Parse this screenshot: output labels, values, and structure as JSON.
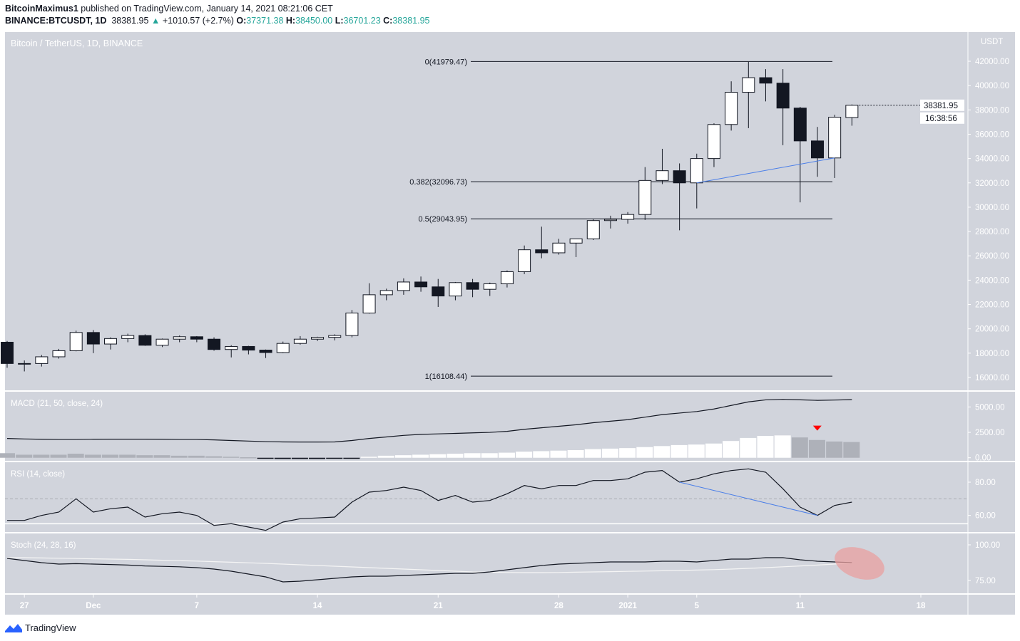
{
  "header": {
    "author": "BitcoinMaximus1",
    "published": "published on TradingView.com, January 14, 2021 08:21:06 CET",
    "symbol": "BINANCE:BTCUSDT, 1D",
    "price": "38381.95",
    "change": "+1010.57 (+2.7%)",
    "o_label": "O:",
    "o": "37371.38",
    "h_label": "H:",
    "h": "38450.00",
    "l_label": "L:",
    "l": "36701.23",
    "c_label": "C:",
    "c": "38381.95"
  },
  "colors": {
    "panel": "#d1d4dc",
    "up": "#ffffff",
    "down": "#131722",
    "accent": "#26a69a",
    "trend": "#4a7ee8",
    "marker": "#ff0000",
    "ellipse": "#e8a0a0"
  },
  "brand": "TradingView",
  "chart_data": {
    "type": "candlestick",
    "title": "Bitcoin / TetherUS, 1D, BINANCE",
    "currency": "USDT",
    "ylim": [
      15000,
      44000
    ],
    "yticks": [
      16000,
      18000,
      20000,
      22000,
      24000,
      26000,
      28000,
      30000,
      32000,
      34000,
      36000,
      38000,
      40000,
      42000
    ],
    "last_price_label": "38381.95",
    "countdown_label": "16:38:56",
    "x_tick_labels": [
      {
        "day": 1,
        "label": "27"
      },
      {
        "day": 5,
        "label": "Dec"
      },
      {
        "day": 11,
        "label": "7"
      },
      {
        "day": 18,
        "label": "14"
      },
      {
        "day": 25,
        "label": "21"
      },
      {
        "day": 32,
        "label": "28"
      },
      {
        "day": 36,
        "label": "2021"
      },
      {
        "day": 40,
        "label": "5"
      },
      {
        "day": 46,
        "label": "11"
      },
      {
        "day": 53,
        "label": "18"
      }
    ],
    "dates": [
      "2020-11-26",
      "2020-11-27",
      "2020-11-28",
      "2020-11-29",
      "2020-11-30",
      "2020-12-01",
      "2020-12-02",
      "2020-12-03",
      "2020-12-04",
      "2020-12-05",
      "2020-12-06",
      "2020-12-07",
      "2020-12-08",
      "2020-12-09",
      "2020-12-10",
      "2020-12-11",
      "2020-12-12",
      "2020-12-13",
      "2020-12-14",
      "2020-12-15",
      "2020-12-16",
      "2020-12-17",
      "2020-12-18",
      "2020-12-19",
      "2020-12-20",
      "2020-12-21",
      "2020-12-22",
      "2020-12-23",
      "2020-12-24",
      "2020-12-25",
      "2020-12-26",
      "2020-12-27",
      "2020-12-28",
      "2020-12-29",
      "2020-12-30",
      "2020-12-31",
      "2021-01-01",
      "2021-01-02",
      "2021-01-03",
      "2021-01-04",
      "2021-01-05",
      "2021-01-06",
      "2021-01-07",
      "2021-01-08",
      "2021-01-09",
      "2021-01-10",
      "2021-01-11",
      "2021-01-12",
      "2021-01-13",
      "2021-01-14"
    ],
    "ohlc": [
      [
        18900,
        19000,
        16800,
        17150
      ],
      [
        17150,
        17400,
        16500,
        17150
      ],
      [
        17150,
        17850,
        16900,
        17700
      ],
      [
        17700,
        18350,
        17550,
        18200
      ],
      [
        18200,
        19850,
        18150,
        19700
      ],
      [
        19700,
        19900,
        18000,
        18750
      ],
      [
        18750,
        19300,
        18300,
        19200
      ],
      [
        19200,
        19600,
        18900,
        19450
      ],
      [
        19450,
        19550,
        18600,
        18650
      ],
      [
        18650,
        19200,
        18500,
        19150
      ],
      [
        19150,
        19450,
        18900,
        19350
      ],
      [
        19350,
        19400,
        18900,
        19150
      ],
      [
        19150,
        19300,
        18200,
        18300
      ],
      [
        18300,
        18650,
        17650,
        18550
      ],
      [
        18550,
        18600,
        17900,
        18250
      ],
      [
        18250,
        18300,
        17600,
        18050
      ],
      [
        18050,
        18950,
        18000,
        18800
      ],
      [
        18800,
        19400,
        18700,
        19150
      ],
      [
        19150,
        19350,
        19000,
        19300
      ],
      [
        19300,
        19550,
        19050,
        19450
      ],
      [
        19450,
        21550,
        19300,
        21300
      ],
      [
        21300,
        23750,
        21250,
        22800
      ],
      [
        22800,
        23300,
        22350,
        23150
      ],
      [
        23150,
        24150,
        22800,
        23850
      ],
      [
        23850,
        24300,
        23050,
        23450
      ],
      [
        23450,
        24100,
        21800,
        22700
      ],
      [
        22700,
        23850,
        22350,
        23800
      ],
      [
        23800,
        24100,
        22600,
        23250
      ],
      [
        23250,
        23800,
        22700,
        23700
      ],
      [
        23700,
        24800,
        23400,
        24700
      ],
      [
        24700,
        26850,
        24500,
        26500
      ],
      [
        26500,
        28400,
        25800,
        26250
      ],
      [
        26250,
        27400,
        26100,
        27050
      ],
      [
        27050,
        27400,
        25900,
        27400
      ],
      [
        27400,
        29000,
        27300,
        28900
      ],
      [
        28900,
        29300,
        28250,
        29000
      ],
      [
        29000,
        29600,
        28650,
        29400
      ],
      [
        29400,
        33300,
        28950,
        32200
      ],
      [
        32200,
        34800,
        31900,
        33000
      ],
      [
        33000,
        33600,
        28100,
        32000
      ],
      [
        32000,
        34400,
        29900,
        34000
      ],
      [
        34000,
        36900,
        33300,
        36800
      ],
      [
        36800,
        40350,
        36300,
        39450
      ],
      [
        39450,
        41950,
        36500,
        40650
      ],
      [
        40650,
        41350,
        38700,
        40200
      ],
      [
        40200,
        41350,
        35100,
        38150
      ],
      [
        38150,
        38250,
        30400,
        35450
      ],
      [
        35450,
        36600,
        32500,
        34050
      ],
      [
        34050,
        37600,
        32400,
        37400
      ],
      [
        37371.38,
        38450,
        36701.23,
        38381.95
      ]
    ],
    "fib_levels": [
      {
        "label": "0(41979.47)",
        "value": 41979.47
      },
      {
        "label": "0.382(32096.73)",
        "value": 32096.73
      },
      {
        "label": "0.5(29043.95)",
        "value": 29043.95
      },
      {
        "label": "1(16108.44)",
        "value": 16108.44
      }
    ],
    "trendline": {
      "from": {
        "day": 40,
        "value": 32000
      },
      "to": {
        "day": 48,
        "value": 34050
      }
    },
    "indicators": [
      {
        "name": "MACD (21, 50, close, 24)",
        "ylim": [
          -300,
          6500
        ],
        "yticks": [
          {
            "v": 5000,
            "label": "5000.00"
          },
          {
            "v": 2500,
            "label": "2500.00"
          },
          {
            "v": 0,
            "label": "0.00"
          }
        ],
        "macd": [
          1900,
          1850,
          1820,
          1800,
          1800,
          1820,
          1830,
          1830,
          1830,
          1820,
          1800,
          1800,
          1760,
          1700,
          1640,
          1590,
          1560,
          1550,
          1550,
          1560,
          1700,
          1900,
          2050,
          2200,
          2300,
          2350,
          2400,
          2450,
          2500,
          2600,
          2800,
          2950,
          3100,
          3250,
          3450,
          3600,
          3750,
          4000,
          4250,
          4400,
          4550,
          4800,
          5150,
          5500,
          5700,
          5750,
          5700,
          5650,
          5680,
          5720
        ],
        "histogram": [
          450,
          300,
          300,
          300,
          400,
          300,
          300,
          300,
          250,
          250,
          200,
          200,
          150,
          100,
          50,
          -80,
          -120,
          -120,
          -120,
          -100,
          -80,
          100,
          200,
          250,
          300,
          350,
          400,
          450,
          450,
          500,
          600,
          650,
          700,
          750,
          850,
          900,
          950,
          1050,
          1150,
          1250,
          1300,
          1400,
          1650,
          1950,
          2150,
          2200,
          2000,
          1750,
          1600,
          1550
        ],
        "marker_day": 46
      },
      {
        "name": "RSI (14, close)",
        "ylim": [
          50,
          92
        ],
        "yticks": [
          {
            "v": 80,
            "label": "80.00"
          },
          {
            "v": 60,
            "label": "60.00"
          }
        ],
        "bands": [
          70,
          55
        ],
        "values": [
          57,
          57,
          60,
          62,
          70,
          62,
          64,
          65,
          59,
          61,
          62,
          60,
          54,
          55,
          53,
          51,
          56,
          58,
          58.5,
          59,
          68,
          74,
          75,
          77,
          75,
          69,
          72,
          68,
          69,
          73,
          78,
          76,
          78,
          78,
          81,
          81,
          82,
          86,
          87,
          80,
          82,
          85,
          87,
          88,
          86,
          76,
          65,
          60,
          66,
          68
        ],
        "divergence": {
          "from": {
            "day": 39,
            "value": 80
          },
          "to": {
            "day": 47,
            "value": 60
          }
        }
      },
      {
        "name": "Stoch (24, 28, 16)",
        "ylim": [
          66,
          108
        ],
        "yticks": [
          {
            "v": 100,
            "label": "100.00"
          },
          {
            "v": 75,
            "label": "75.00"
          }
        ],
        "k": [
          90.5,
          89,
          87.5,
          86.5,
          86.8,
          86.5,
          86.2,
          85.8,
          85.2,
          84.9,
          84.6,
          84,
          83,
          81.5,
          79.5,
          77.5,
          74,
          74.5,
          75.5,
          76.5,
          77.5,
          78,
          78,
          78.5,
          79,
          79.5,
          80,
          80,
          81,
          82.5,
          84,
          85.5,
          86.5,
          87,
          87.5,
          88,
          88,
          88,
          88.5,
          88.5,
          88,
          89,
          90,
          90,
          91,
          91,
          89.5,
          88.5,
          88,
          87.5
        ],
        "d": [
          91,
          91,
          90.8,
          90.6,
          90.4,
          90.2,
          90,
          89.8,
          89.5,
          89.2,
          88.9,
          88.6,
          88.2,
          87.8,
          87.4,
          87,
          86.5,
          86,
          85.5,
          85,
          84.5,
          84,
          83.5,
          83,
          82.5,
          82,
          81.5,
          81,
          80.8,
          80.6,
          80.5,
          80.5,
          80.6,
          80.8,
          81,
          81.2,
          81.4,
          81.6,
          81.8,
          82,
          82.3,
          82.6,
          83,
          83.5,
          84,
          84.6,
          85.2,
          85.8,
          86.5,
          87.2
        ]
      }
    ]
  }
}
